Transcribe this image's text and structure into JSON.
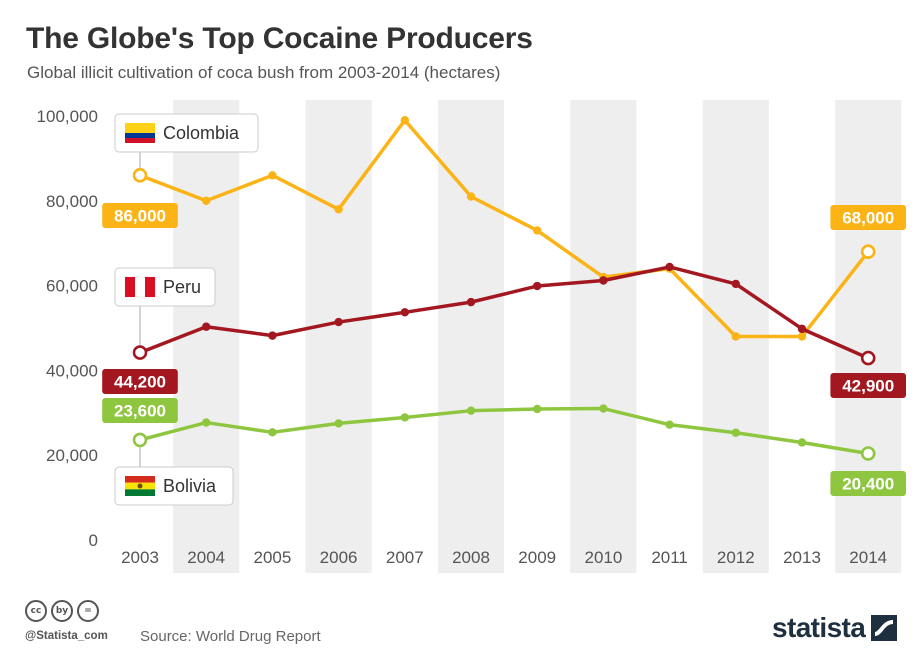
{
  "title": "The Globe's Top Cocaine Producers",
  "subtitle": "Global illicit cultivation of coca bush from 2003-2014 (hectares)",
  "source": "Source: World Drug Report",
  "handle": "@Statista_com",
  "brand": "statista",
  "license_icons": [
    "cc",
    "by",
    "="
  ],
  "chart_data": {
    "type": "line",
    "categories": [
      "2003",
      "2004",
      "2005",
      "2006",
      "2007",
      "2008",
      "2009",
      "2010",
      "2011",
      "2012",
      "2013",
      "2014"
    ],
    "ylim": [
      0,
      100000
    ],
    "yticks": [
      0,
      20000,
      40000,
      60000,
      80000,
      100000
    ],
    "ytick_labels": [
      "0",
      "20,000",
      "40,000",
      "60,000",
      "80,000",
      "100,000"
    ],
    "grid": "alternating vertical bands",
    "series": [
      {
        "name": "Colombia",
        "color": "#fbb316",
        "flag": "colombia",
        "values": [
          86000,
          80000,
          86000,
          78000,
          99000,
          81000,
          73000,
          62000,
          64000,
          48000,
          48000,
          68000
        ],
        "start_label": "86,000",
        "end_label": "68,000"
      },
      {
        "name": "Peru",
        "color": "#a31820",
        "flag": "peru",
        "values": [
          44200,
          50300,
          48200,
          51400,
          53700,
          56100,
          59900,
          61200,
          64400,
          60400,
          49800,
          42900
        ],
        "start_label": "44,200",
        "end_label": "42,900"
      },
      {
        "name": "Bolivia",
        "color": "#8ec63f",
        "flag": "bolivia",
        "values": [
          23600,
          27700,
          25400,
          27500,
          28900,
          30500,
          30900,
          31000,
          27200,
          25300,
          23000,
          20400
        ],
        "start_label": "23,600",
        "end_label": "20,400"
      }
    ]
  }
}
